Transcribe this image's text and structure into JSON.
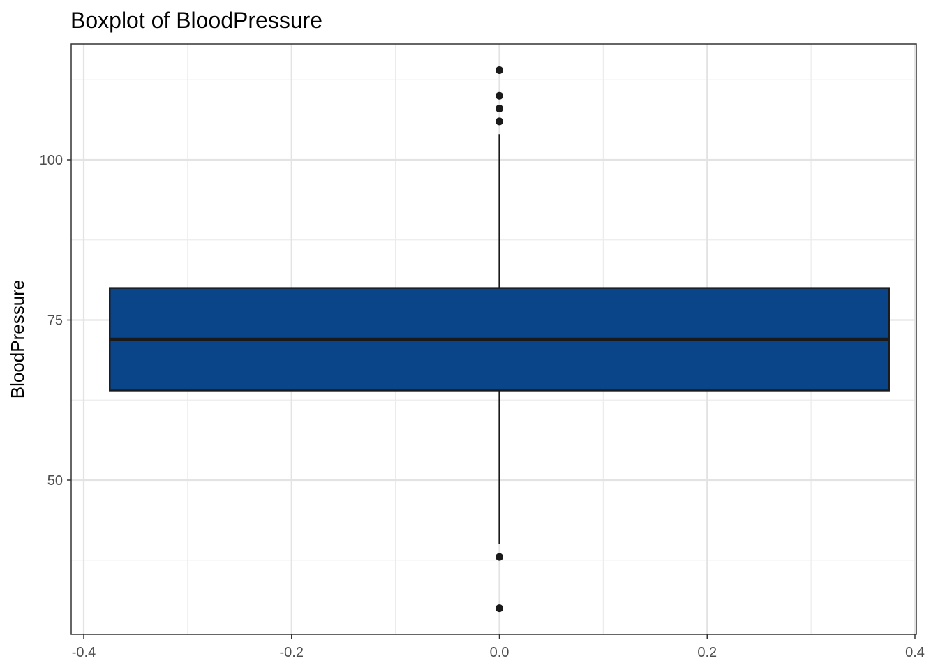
{
  "chart_data": {
    "type": "box",
    "title": "Boxplot of BloodPressure",
    "xlabel": "",
    "ylabel": "BloodPressure",
    "xlim": [
      -0.4,
      0.4
    ],
    "ylim": [
      27,
      119
    ],
    "x_ticks": [
      -0.4,
      -0.2,
      0.0,
      0.2,
      0.4
    ],
    "x_tick_labels": [
      "-0.4",
      "-0.2",
      "0.0",
      "0.2",
      "0.4"
    ],
    "y_ticks": [
      50,
      75,
      100
    ],
    "y_tick_labels": [
      "50",
      "75",
      "100"
    ],
    "grid": true,
    "box": {
      "x_center": 0.0,
      "x_min": -0.375,
      "x_max": 0.375,
      "q1": 64,
      "median": 72,
      "q3": 80,
      "whisker_low": 40,
      "whisker_high": 104,
      "fill_color": "#0b4589",
      "outliers": [
        114,
        110,
        108,
        106,
        38,
        30
      ]
    }
  }
}
